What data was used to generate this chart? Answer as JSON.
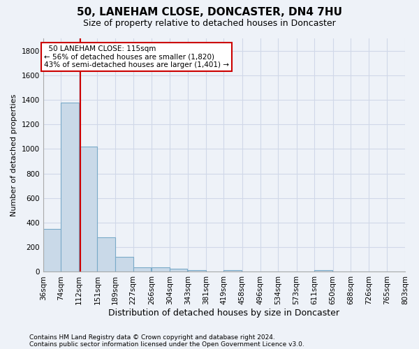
{
  "title1": "50, LANEHAM CLOSE, DONCASTER, DN4 7HU",
  "title2": "Size of property relative to detached houses in Doncaster",
  "xlabel": "Distribution of detached houses by size in Doncaster",
  "ylabel": "Number of detached properties",
  "footnote1": "Contains HM Land Registry data © Crown copyright and database right 2024.",
  "footnote2": "Contains public sector information licensed under the Open Government Licence v3.0.",
  "bin_edges": [
    36,
    74,
    112,
    151,
    189,
    227,
    266,
    304,
    343,
    381,
    419,
    458,
    496,
    534,
    573,
    611,
    650,
    688,
    726,
    765,
    803
  ],
  "bar_heights": [
    350,
    1380,
    1020,
    280,
    120,
    35,
    35,
    25,
    15,
    0,
    15,
    0,
    0,
    0,
    0,
    15,
    0,
    0,
    0,
    0
  ],
  "bar_color": "#c9d9e8",
  "bar_edge_color": "#7aaac8",
  "grid_color": "#d0d8e8",
  "vline_x": 115,
  "vline_color": "#cc0000",
  "annotation_text": "  50 LANEHAM CLOSE: 115sqm\n← 56% of detached houses are smaller (1,820)\n43% of semi-detached houses are larger (1,401) →",
  "annotation_box_color": "#ffffff",
  "annotation_box_edge": "#cc0000",
  "ylim": [
    0,
    1900
  ],
  "yticks": [
    0,
    200,
    400,
    600,
    800,
    1000,
    1200,
    1400,
    1600,
    1800
  ],
  "background_color": "#eef2f8",
  "title1_fontsize": 11,
  "title2_fontsize": 9,
  "ylabel_fontsize": 8,
  "xlabel_fontsize": 9,
  "tick_fontsize": 7.5,
  "footnote_fontsize": 6.5
}
